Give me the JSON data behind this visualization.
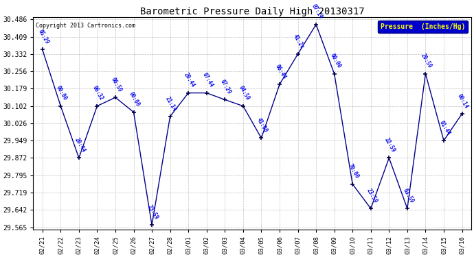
{
  "title": "Barometric Pressure Daily High 20130317",
  "copyright": "Copyright 2013 Cartronics.com",
  "legend_label": "Pressure  (Inches/Hg)",
  "dates": [
    "02/21",
    "02/22",
    "02/23",
    "02/24",
    "02/25",
    "02/26",
    "02/27",
    "02/28",
    "03/01",
    "03/02",
    "03/03",
    "03/04",
    "03/05",
    "03/06",
    "03/07",
    "03/08",
    "03/09",
    "03/10",
    "03/11",
    "03/12",
    "03/13",
    "03/14",
    "03/15",
    "03/16"
  ],
  "values": [
    30.352,
    30.102,
    29.872,
    30.102,
    30.14,
    30.075,
    29.575,
    30.056,
    30.16,
    30.16,
    30.13,
    30.102,
    29.96,
    30.198,
    30.332,
    30.463,
    30.245,
    29.756,
    29.648,
    29.872,
    29.648,
    30.245,
    29.949,
    30.068
  ],
  "time_labels": [
    "05:29",
    "00:00",
    "20:44",
    "06:32",
    "06:59",
    "00:00",
    "23:59",
    "21:14",
    "20:44",
    "07:44",
    "07:29",
    "04:59",
    "41:00",
    "06:44",
    "41:2c",
    "07:14",
    "00:00",
    "70:00",
    "23:59",
    "22:59",
    "63:59",
    "20:59",
    "01:44",
    "00:14"
  ],
  "ylim_min": 29.555,
  "ylim_max": 30.496,
  "yticks": [
    29.565,
    29.642,
    29.719,
    29.795,
    29.872,
    29.949,
    30.026,
    30.102,
    30.179,
    30.256,
    30.332,
    30.409,
    30.486
  ],
  "line_color": "#00008B",
  "marker_color": "#00004B",
  "bg_color": "#FFFFFF",
  "grid_color": "#BBBBBB",
  "label_color": "#0000EE",
  "title_color": "#000000",
  "legend_bg": "#0000CC",
  "legend_fg": "#FFFF00"
}
